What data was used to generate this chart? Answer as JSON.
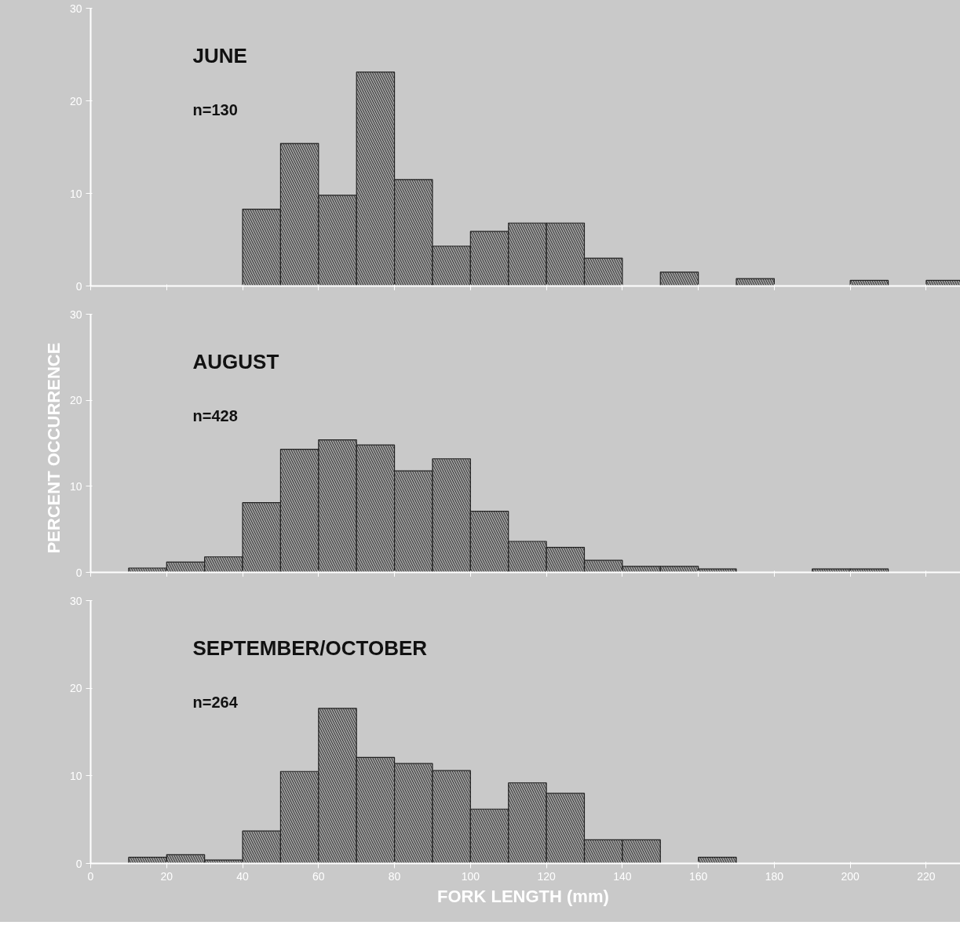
{
  "chart_data": [
    {
      "type": "histogram",
      "title": "JUNE",
      "subtitle": "n=130",
      "bins": [
        40,
        50,
        60,
        70,
        80,
        90,
        100,
        110,
        120,
        130,
        140,
        150,
        160,
        170,
        180,
        190,
        200,
        210,
        220,
        230
      ],
      "values": [
        8.3,
        15.4,
        9.8,
        23.1,
        11.5,
        4.3,
        5.9,
        6.8,
        6.8,
        3.0,
        null,
        1.5,
        null,
        0.8,
        null,
        null,
        0.6,
        null,
        0.6
      ],
      "color": "#9a9a9a",
      "xlim": [
        0,
        229
      ],
      "xticks": [
        0,
        20,
        40,
        60,
        80,
        100,
        120,
        140,
        160,
        180,
        200,
        220
      ],
      "ylim": [
        0,
        30
      ],
      "yticks": [
        0,
        10,
        20,
        30
      ],
      "tick_labels": "y",
      "grid": false
    },
    {
      "type": "histogram",
      "title": "AUGUST",
      "subtitle": "n=428",
      "ylabel": "PERCENT   OCCURRENCE",
      "bins": [
        10,
        20,
        30,
        40,
        50,
        60,
        70,
        80,
        90,
        100,
        110,
        120,
        130,
        140,
        150,
        160,
        170,
        180,
        190,
        200,
        210
      ],
      "values": [
        0.5,
        1.2,
        1.8,
        8.1,
        14.3,
        15.4,
        14.8,
        11.8,
        13.2,
        7.1,
        3.6,
        2.9,
        1.4,
        0.7,
        0.7,
        0.4,
        null,
        null,
        0.4,
        0.4
      ],
      "color": "#9a9a9a",
      "xlim": [
        0,
        229
      ],
      "xticks": [
        0,
        20,
        40,
        60,
        80,
        100,
        120,
        140,
        160,
        180,
        200,
        220
      ],
      "ylim": [
        0,
        30
      ],
      "yticks": [
        0,
        10,
        20,
        30
      ],
      "tick_labels": "y",
      "grid": false
    },
    {
      "type": "histogram",
      "title": "SEPTEMBER/OCTOBER",
      "subtitle": "n=264",
      "xlabel": "FORK  LENGTH (mm)",
      "bins": [
        10,
        20,
        30,
        40,
        50,
        60,
        70,
        80,
        90,
        100,
        110,
        120,
        130,
        140,
        150,
        160,
        170
      ],
      "values": [
        0.7,
        1.0,
        0.4,
        3.7,
        10.5,
        17.7,
        12.1,
        11.4,
        10.6,
        6.2,
        9.2,
        8.0,
        2.7,
        2.7,
        null,
        0.7
      ],
      "color": "#9a9a9a",
      "xlim": [
        0,
        229
      ],
      "xticks": [
        0,
        20,
        40,
        60,
        80,
        100,
        120,
        140,
        160,
        180,
        200,
        220
      ],
      "ylim": [
        0,
        30
      ],
      "yticks": [
        0,
        10,
        20,
        30
      ],
      "grid": false
    }
  ]
}
